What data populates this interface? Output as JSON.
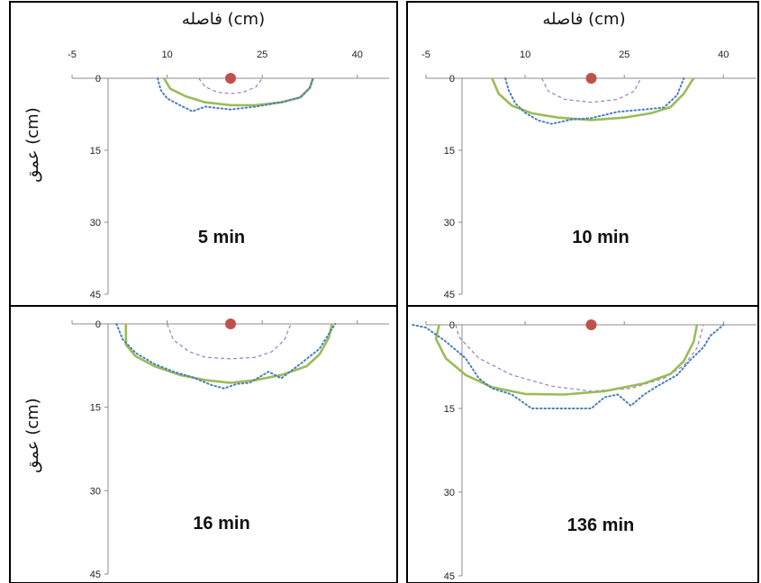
{
  "colors": {
    "background": "#ffffff",
    "border": "#000000",
    "axis": "#8c8c8c",
    "source_marker": "#c0504d",
    "series_dashed": "#9b7ec8",
    "series_solid": "#9bbb59",
    "series_dotted": "#4a7ebb"
  },
  "shared_axes": {
    "xlabel": "فاصله (cm)",
    "ylabel": "عمق (cm)",
    "x_ticks": [
      -5,
      10,
      25,
      40
    ],
    "x_tick_labels": [
      "-5",
      "10",
      "25",
      "40"
    ],
    "y_ticks": [
      0,
      15,
      30,
      45
    ],
    "y_tick_labels": [
      "0",
      "15",
      "30",
      "45"
    ],
    "xlim": [
      -5,
      45
    ],
    "ylim": [
      0,
      45
    ],
    "y_inverted": true
  },
  "chart_data": [
    {
      "type": "line",
      "title": "5 min",
      "xlabel": "فاصله (cm)",
      "ylabel": "عمق (cm)",
      "xlim": [
        -5,
        45
      ],
      "ylim": [
        0,
        45
      ],
      "y_inverted": true,
      "source_point": {
        "x": 20,
        "y": 0
      },
      "series": [
        {
          "style": "dashed",
          "color": "#9b7ec8",
          "x": [
            15,
            16,
            18,
            20,
            22,
            24,
            25
          ],
          "y": [
            0,
            1.8,
            2.9,
            3.2,
            2.9,
            1.8,
            0
          ]
        },
        {
          "style": "solid",
          "color": "#9bbb59",
          "x": [
            9.5,
            10.5,
            13,
            16,
            20,
            24,
            28,
            31,
            32.5,
            33
          ],
          "y": [
            0,
            2.2,
            3.8,
            5.0,
            5.6,
            5.6,
            5.0,
            4.0,
            2.0,
            0
          ]
        },
        {
          "style": "dotted",
          "color": "#4a7ebb",
          "x": [
            8.5,
            9,
            10,
            12,
            14,
            16,
            20,
            24,
            28,
            31,
            32.5,
            33
          ],
          "y": [
            0,
            2.5,
            4.2,
            5.6,
            6.9,
            5.9,
            6.5,
            5.9,
            5.0,
            4.0,
            2.0,
            0
          ]
        }
      ]
    },
    {
      "type": "line",
      "title": "10 min",
      "xlabel": "فاصله (cm)",
      "ylabel": "عمق (cm)",
      "xlim": [
        -5,
        45
      ],
      "ylim": [
        0,
        45
      ],
      "y_inverted": true,
      "source_point": {
        "x": 20,
        "y": 0
      },
      "series": [
        {
          "style": "dashed",
          "color": "#9b7ec8",
          "x": [
            12.5,
            13.5,
            16,
            20,
            24,
            26.5,
            27.5
          ],
          "y": [
            0,
            2.7,
            4.4,
            5.0,
            4.4,
            2.7,
            0
          ]
        },
        {
          "style": "solid",
          "color": "#9bbb59",
          "x": [
            5,
            6,
            8,
            11,
            15,
            20,
            25,
            29,
            32,
            34,
            35,
            35.5
          ],
          "y": [
            0,
            3.2,
            5.7,
            7.3,
            8.2,
            8.7,
            8.2,
            7.3,
            6.0,
            3.2,
            1.0,
            0
          ]
        },
        {
          "style": "dotted",
          "color": "#4a7ebb",
          "x": [
            7,
            7.5,
            8.5,
            10,
            12,
            14,
            17,
            20,
            24,
            28,
            31,
            33,
            34
          ],
          "y": [
            0,
            2.5,
            5.2,
            7.2,
            8.8,
            9.5,
            8.6,
            8.3,
            7.0,
            6.5,
            6.1,
            3.5,
            0
          ]
        }
      ]
    },
    {
      "type": "line",
      "title": "16 min",
      "xlabel": "فاصله (cm)",
      "ylabel": "عمق (cm)",
      "xlim": [
        -5,
        45
      ],
      "ylim": [
        0,
        45
      ],
      "y_inverted": true,
      "source_point": {
        "x": 20,
        "y": 0
      },
      "series": [
        {
          "style": "dashed",
          "color": "#9b7ec8",
          "x": [
            10,
            11,
            13.5,
            16,
            20,
            24,
            26.5,
            28.5,
            29.5
          ],
          "y": [
            0,
            2.9,
            5.0,
            6.0,
            6.3,
            6.0,
            5.0,
            2.9,
            0
          ]
        },
        {
          "style": "solid",
          "color": "#9bbb59",
          "x": [
            3.5,
            3.5,
            5,
            8,
            12,
            16,
            20,
            24,
            28,
            32,
            34,
            35.5,
            36
          ],
          "y": [
            0,
            3.7,
            5.8,
            7.6,
            9.2,
            10.1,
            10.6,
            10.1,
            9.2,
            7.6,
            5.5,
            2.5,
            0
          ]
        },
        {
          "style": "dotted",
          "color": "#4a7ebb",
          "x": [
            2,
            3,
            5,
            8,
            11,
            14,
            17,
            19,
            21,
            23,
            26,
            28,
            31,
            34,
            36.5
          ],
          "y": [
            0,
            2.8,
            5.2,
            7.2,
            8.6,
            9.6,
            11.0,
            11.6,
            10.8,
            10.6,
            8.6,
            9.8,
            7.2,
            4.5,
            0
          ]
        }
      ]
    },
    {
      "type": "line",
      "title": "136 min",
      "xlabel": "فاصله (cm)",
      "ylabel": "عمق (cm)",
      "xlim": [
        -5,
        45
      ],
      "ylim": [
        0,
        45
      ],
      "y_inverted": true,
      "source_point": {
        "x": 20,
        "y": 0
      },
      "series": [
        {
          "style": "dashed",
          "color": "#9b7ec8",
          "x": [
            -0.5,
            0,
            3,
            8,
            14,
            20,
            26,
            31,
            34,
            36,
            37
          ],
          "y": [
            0,
            2.2,
            6.0,
            9.0,
            11.0,
            11.9,
            11.4,
            9.6,
            7.3,
            4.2,
            0
          ]
        },
        {
          "style": "solid",
          "color": "#9bbb59",
          "x": [
            -3,
            -3.5,
            -2,
            1,
            5,
            10,
            16,
            22,
            28,
            32,
            34,
            35.5,
            36
          ],
          "y": [
            0,
            2.5,
            6.0,
            9.0,
            11.2,
            12.4,
            12.5,
            11.9,
            10.5,
            8.8,
            6.5,
            3.0,
            0
          ]
        },
        {
          "style": "dotted",
          "color": "#4a7ebb",
          "x": [
            -7,
            -5,
            -2,
            1,
            3,
            5,
            8,
            11,
            14,
            17,
            20,
            22,
            24,
            26,
            28,
            30,
            33,
            35,
            37,
            38,
            39,
            40
          ],
          "y": [
            0,
            0.5,
            3.0,
            6.0,
            9.6,
            11.4,
            12.5,
            15.0,
            15.0,
            15.0,
            15.0,
            13.0,
            12.5,
            14.5,
            12.5,
            11.0,
            9.0,
            6.3,
            4.0,
            2.0,
            1.0,
            0
          ]
        }
      ]
    }
  ]
}
